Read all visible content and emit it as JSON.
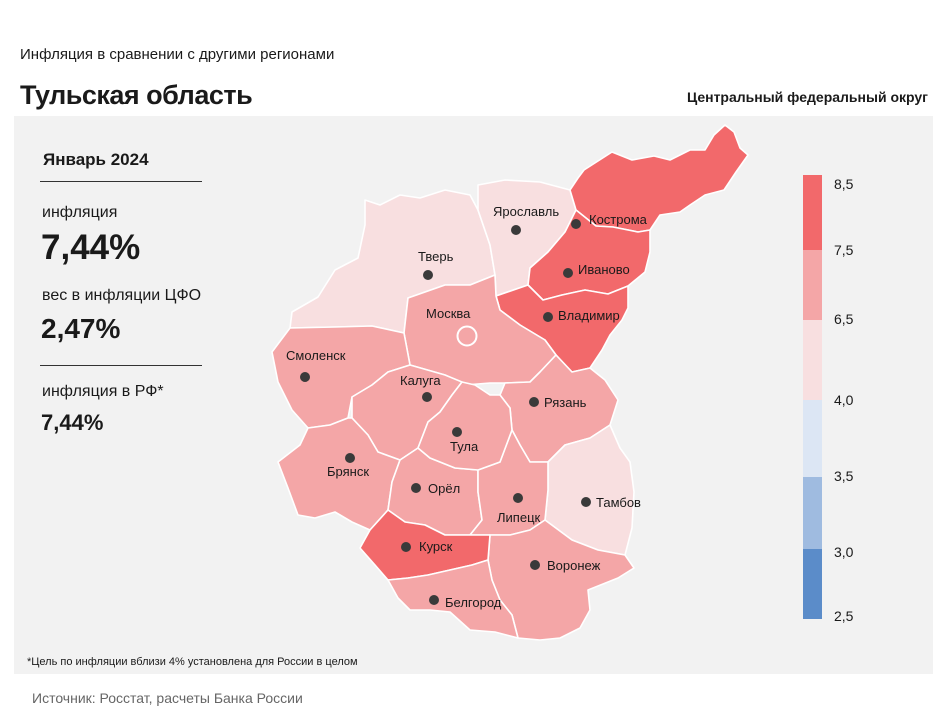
{
  "header": {
    "subtitle": "Инфляция  в сравнении  с другими  регионами",
    "title": "Тульская область",
    "district": "Центральный федеральный округ"
  },
  "stats": {
    "period": "Январь 2024",
    "inflation_label": "инфляция",
    "inflation_value": "7,44%",
    "weight_label": "вес в инфляции  ЦФО",
    "weight_value": "2,47%",
    "rf_label": "инфляция  в РФ*",
    "rf_value": "7,44%"
  },
  "footnote": "*Цель по инфляции вблизи 4% установлена для России в целом",
  "source": "Источник: Росстат, расчеты Банка России",
  "colors": {
    "band_7_5_8_5": "#f2696b",
    "band_6_5_7_5": "#f4a6a7",
    "band_4_0_6_5": "#f8dfe0",
    "band_3_5_4_0": "#dce6f4",
    "band_3_0_3_5": "#9fbbe0",
    "band_2_5_3_0": "#5b8cc9",
    "panel": "#f2f2f2"
  },
  "legend": {
    "ticks": [
      "8,5",
      "7,5",
      "6,5",
      "4,0",
      "3,5",
      "3,0",
      "2,5"
    ]
  },
  "regions": [
    {
      "name": "Тверь",
      "band": "4.0-6.5"
    },
    {
      "name": "Ярославль",
      "band": "4.0-6.5"
    },
    {
      "name": "Кострома",
      "band": "7.5-8.5"
    },
    {
      "name": "Иваново",
      "band": "7.5-8.5"
    },
    {
      "name": "Владимир",
      "band": "7.5-8.5"
    },
    {
      "name": "Москва",
      "band": "6.5-7.5"
    },
    {
      "name": "Смоленск",
      "band": "6.5-7.5"
    },
    {
      "name": "Калуга",
      "band": "6.5-7.5"
    },
    {
      "name": "Тула",
      "band": "6.5-7.5",
      "highlighted": true
    },
    {
      "name": "Рязань",
      "band": "6.5-7.5"
    },
    {
      "name": "Брянск",
      "band": "6.5-7.5"
    },
    {
      "name": "Орёл",
      "band": "6.5-7.5"
    },
    {
      "name": "Липецк",
      "band": "6.5-7.5"
    },
    {
      "name": "Тамбов",
      "band": "4.0-6.5"
    },
    {
      "name": "Курск",
      "band": "7.5-8.5"
    },
    {
      "name": "Воронеж",
      "band": "6.5-7.5"
    },
    {
      "name": "Белгород",
      "band": "6.5-7.5"
    }
  ]
}
